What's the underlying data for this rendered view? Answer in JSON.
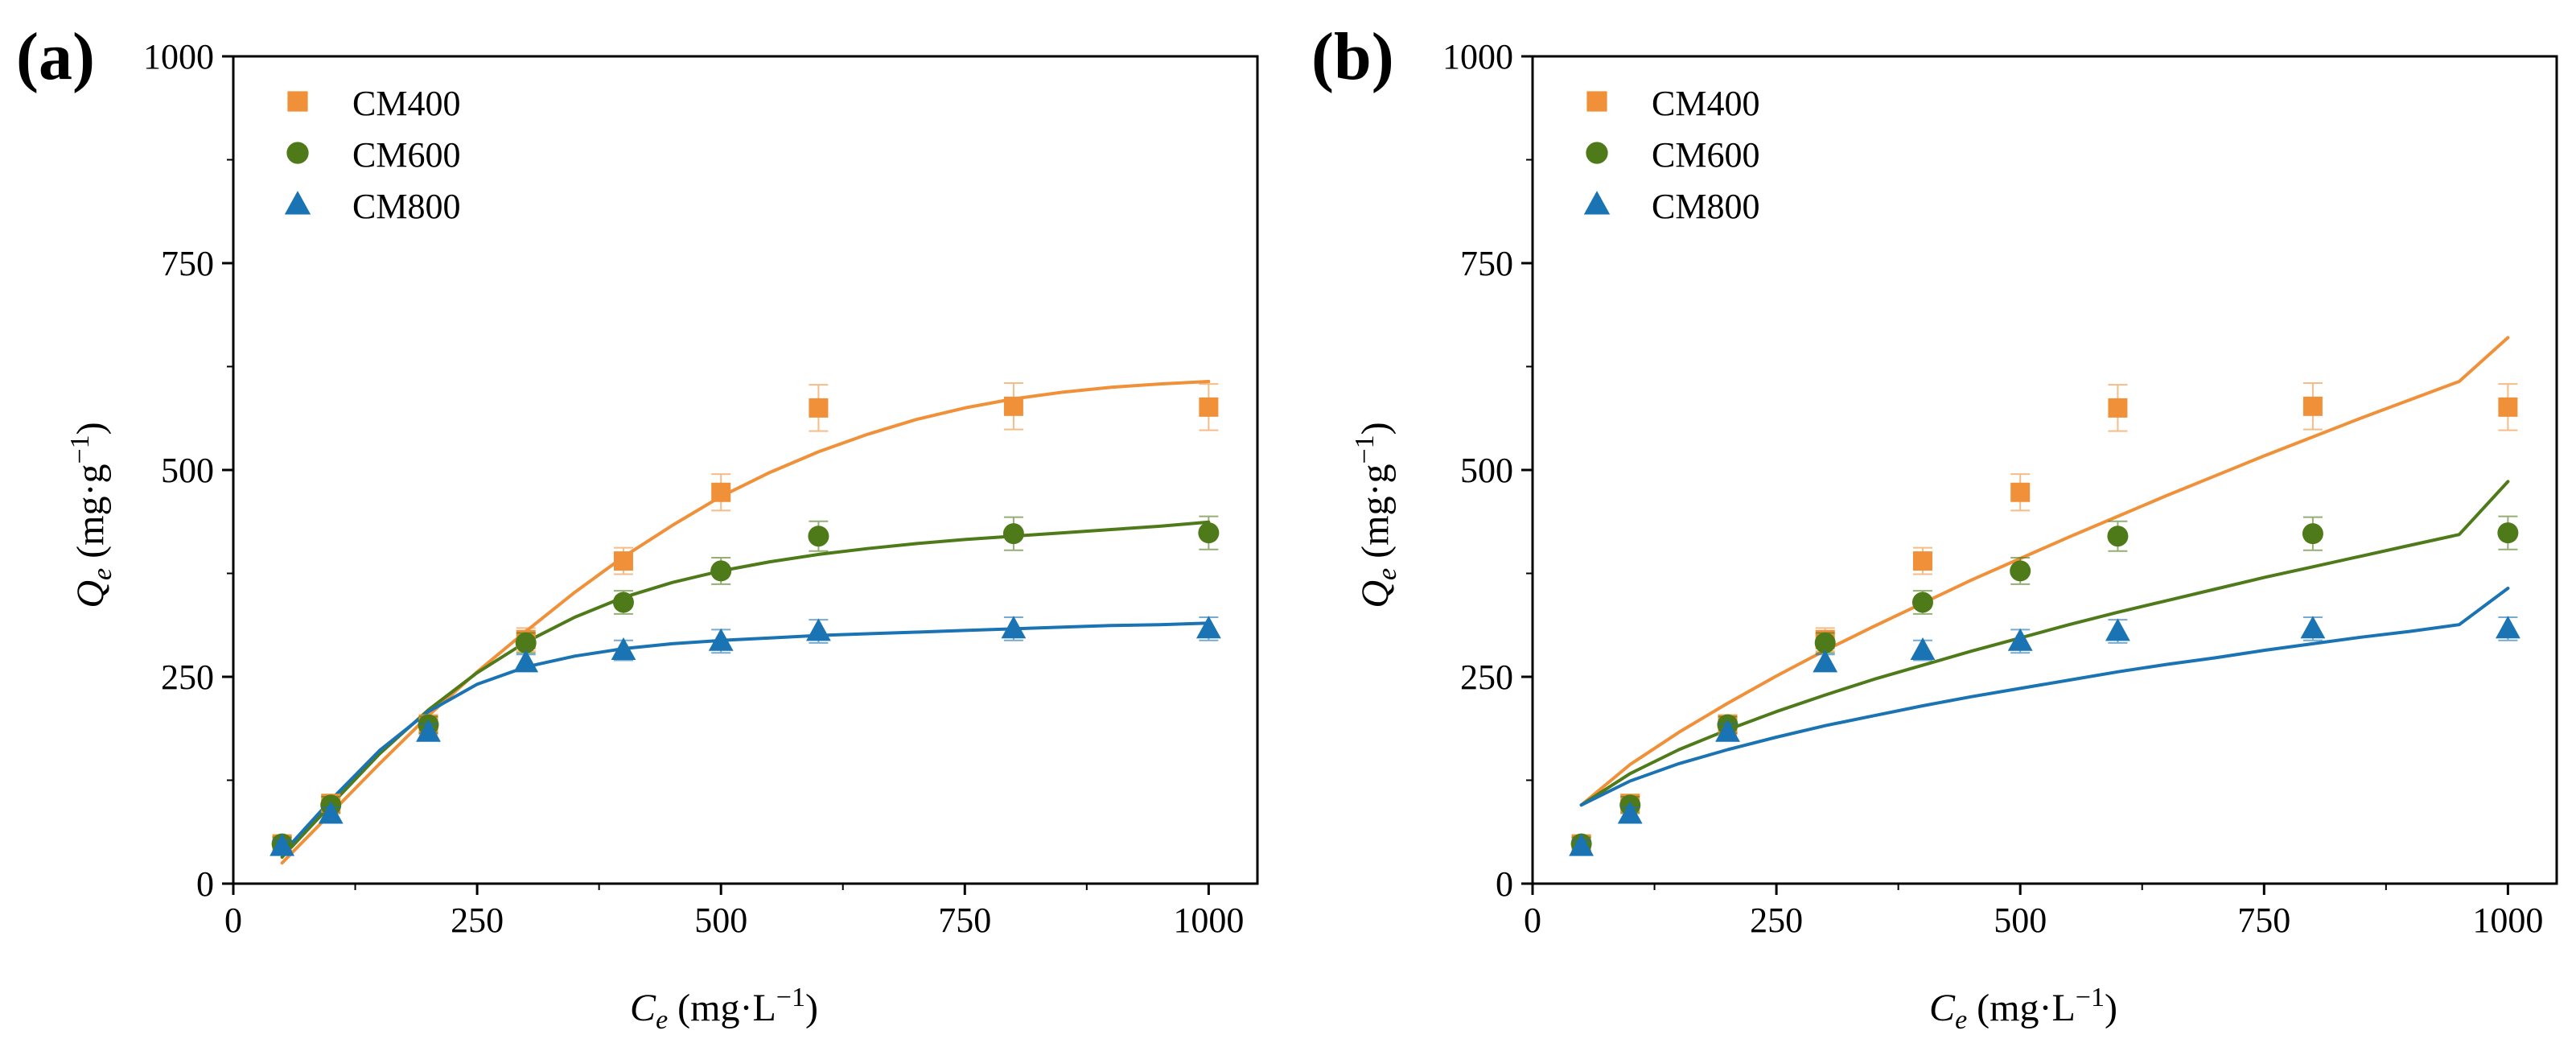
{
  "panels": [
    {
      "label": "(a)",
      "ylabel": {
        "main": "Q",
        "sub": "e",
        "unit_pre": " (mg·g",
        "sup": "−1",
        "unit_post": ")"
      },
      "xlabel": {
        "main": "C",
        "sub": "e",
        "unit_pre": " (mg·L",
        "sup": "−1",
        "unit_post": ")"
      },
      "xticks": [
        "0",
        "250",
        "500",
        "750",
        "1000"
      ],
      "yticks": [
        "0",
        "250",
        "500",
        "750",
        "1000"
      ]
    },
    {
      "label": "(b)",
      "ylabel": {
        "main": "Q",
        "sub": "e",
        "unit_pre": " (mg·g",
        "sup": "−1",
        "unit_post": ")"
      },
      "xlabel": {
        "main": "C",
        "sub": "e",
        "unit_pre": " (mg·L",
        "sup": "−1",
        "unit_post": ")"
      },
      "xticks": [
        "0",
        "250",
        "500",
        "750",
        "1000"
      ],
      "yticks": [
        "0",
        "250",
        "500",
        "750",
        "1000"
      ]
    }
  ],
  "colors": {
    "CM400": "#f0913a",
    "CM600": "#4e7a19",
    "CM800": "#1a73b3",
    "axis": "#000000"
  },
  "chart_data": [
    {
      "type": "scatter",
      "panel": "(a)",
      "xlabel": "Ce (mg·L−1)",
      "ylabel": "Qe (mg·g−1)",
      "xlim": [
        0,
        1050
      ],
      "ylim": [
        0,
        1000
      ],
      "legend_position": "top-left",
      "x": [
        50,
        100,
        200,
        300,
        400,
        500,
        600,
        800,
        1000
      ],
      "series": [
        {
          "name": "CM400",
          "marker": "square",
          "color": "#f0913a",
          "values": [
            48,
            97,
            192,
            295,
            390,
            473,
            575,
            577,
            576
          ],
          "errors": [
            8,
            10,
            12,
            14,
            16,
            22,
            28,
            28,
            28
          ],
          "fit": [
            [
              50,
              25
            ],
            [
              100,
              85
            ],
            [
              150,
              145
            ],
            [
              200,
              203
            ],
            [
              250,
              256
            ],
            [
              300,
              305
            ],
            [
              350,
              352
            ],
            [
              400,
              395
            ],
            [
              450,
              433
            ],
            [
              500,
              468
            ],
            [
              550,
              497
            ],
            [
              600,
              522
            ],
            [
              650,
              543
            ],
            [
              700,
              561
            ],
            [
              750,
              575
            ],
            [
              800,
              586
            ],
            [
              850,
              594
            ],
            [
              900,
              600
            ],
            [
              950,
              604
            ],
            [
              1000,
              607
            ]
          ]
        },
        {
          "name": "CM600",
          "marker": "circle",
          "color": "#4e7a19",
          "values": [
            48,
            95,
            192,
            291,
            340,
            378,
            420,
            423,
            424
          ],
          "errors": [
            8,
            10,
            10,
            12,
            14,
            16,
            18,
            20,
            20
          ],
          "fit": [
            [
              50,
              32
            ],
            [
              100,
              95
            ],
            [
              150,
              157
            ],
            [
              200,
              210
            ],
            [
              250,
              255
            ],
            [
              300,
              292
            ],
            [
              350,
              322
            ],
            [
              400,
              346
            ],
            [
              450,
              364
            ],
            [
              500,
              378
            ],
            [
              550,
              389
            ],
            [
              600,
              398
            ],
            [
              650,
              405
            ],
            [
              700,
              411
            ],
            [
              750,
              416
            ],
            [
              800,
              420
            ],
            [
              850,
              424
            ],
            [
              900,
              428
            ],
            [
              950,
              432
            ],
            [
              1000,
              437
            ]
          ]
        },
        {
          "name": "CM800",
          "marker": "triangle",
          "color": "#1a73b3",
          "values": [
            45,
            84,
            183,
            267,
            282,
            293,
            305,
            308,
            308
          ],
          "errors": [
            7,
            8,
            10,
            10,
            12,
            14,
            14,
            14,
            14
          ],
          "fit": [
            [
              50,
              36
            ],
            [
              100,
              101
            ],
            [
              150,
              161
            ],
            [
              200,
              208
            ],
            [
              250,
              241
            ],
            [
              300,
              262
            ],
            [
              350,
              275
            ],
            [
              400,
              284
            ],
            [
              450,
              290
            ],
            [
              500,
              294
            ],
            [
              550,
              297
            ],
            [
              600,
              300
            ],
            [
              650,
              302
            ],
            [
              700,
              304
            ],
            [
              750,
              306
            ],
            [
              800,
              308
            ],
            [
              850,
              310
            ],
            [
              900,
              312
            ],
            [
              950,
              313
            ],
            [
              1000,
              315
            ]
          ]
        }
      ]
    },
    {
      "type": "scatter",
      "panel": "(b)",
      "xlabel": "Ce (mg·L−1)",
      "ylabel": "Qe (mg·g−1)",
      "xlim": [
        0,
        1050
      ],
      "ylim": [
        0,
        1000
      ],
      "legend_position": "top-left",
      "x": [
        50,
        100,
        200,
        300,
        400,
        500,
        600,
        800,
        1000
      ],
      "series": [
        {
          "name": "CM400",
          "marker": "square",
          "color": "#f0913a",
          "values": [
            48,
            97,
            192,
            295,
            390,
            473,
            575,
            577,
            576
          ],
          "errors": [
            8,
            10,
            12,
            14,
            16,
            22,
            28,
            28,
            28
          ],
          "fit": [
            [
              50,
              95
            ],
            [
              100,
              144
            ],
            [
              150,
              183
            ],
            [
              200,
              218
            ],
            [
              250,
              251
            ],
            [
              300,
              282
            ],
            [
              350,
              311
            ],
            [
              400,
              339
            ],
            [
              450,
              367
            ],
            [
              500,
              393
            ],
            [
              550,
              419
            ],
            [
              600,
              444
            ],
            [
              650,
              469
            ],
            [
              700,
              493
            ],
            [
              750,
              517
            ],
            [
              800,
              540
            ],
            [
              850,
              563
            ],
            [
              900,
              585
            ],
            [
              950,
              607
            ],
            [
              1000,
              660
            ]
          ]
        },
        {
          "name": "CM600",
          "marker": "circle",
          "color": "#4e7a19",
          "values": [
            48,
            95,
            192,
            291,
            340,
            378,
            420,
            423,
            424
          ],
          "errors": [
            8,
            10,
            10,
            12,
            14,
            16,
            18,
            20,
            20
          ],
          "fit": [
            [
              50,
              95
            ],
            [
              100,
              133
            ],
            [
              150,
              162
            ],
            [
              200,
              186
            ],
            [
              250,
              208
            ],
            [
              300,
              228
            ],
            [
              350,
              247
            ],
            [
              400,
              264
            ],
            [
              450,
              281
            ],
            [
              500,
              297
            ],
            [
              550,
              313
            ],
            [
              600,
              328
            ],
            [
              650,
              342
            ],
            [
              700,
              356
            ],
            [
              750,
              370
            ],
            [
              800,
              383
            ],
            [
              850,
              396
            ],
            [
              900,
              409
            ],
            [
              950,
              422
            ],
            [
              1000,
              486
            ]
          ]
        },
        {
          "name": "CM800",
          "marker": "triangle",
          "color": "#1a73b3",
          "values": [
            45,
            84,
            183,
            267,
            282,
            293,
            305,
            308,
            308
          ],
          "errors": [
            7,
            8,
            10,
            10,
            12,
            14,
            14,
            14,
            14
          ],
          "fit": [
            [
              50,
              95
            ],
            [
              100,
              124
            ],
            [
              150,
              145
            ],
            [
              200,
              162
            ],
            [
              250,
              177
            ],
            [
              300,
              191
            ],
            [
              350,
              203
            ],
            [
              400,
              215
            ],
            [
              450,
              226
            ],
            [
              500,
              236
            ],
            [
              550,
              246
            ],
            [
              600,
              256
            ],
            [
              650,
              265
            ],
            [
              700,
              273
            ],
            [
              750,
              282
            ],
            [
              800,
              290
            ],
            [
              850,
              298
            ],
            [
              900,
              305
            ],
            [
              950,
              313
            ],
            [
              1000,
              357
            ]
          ]
        }
      ]
    }
  ]
}
